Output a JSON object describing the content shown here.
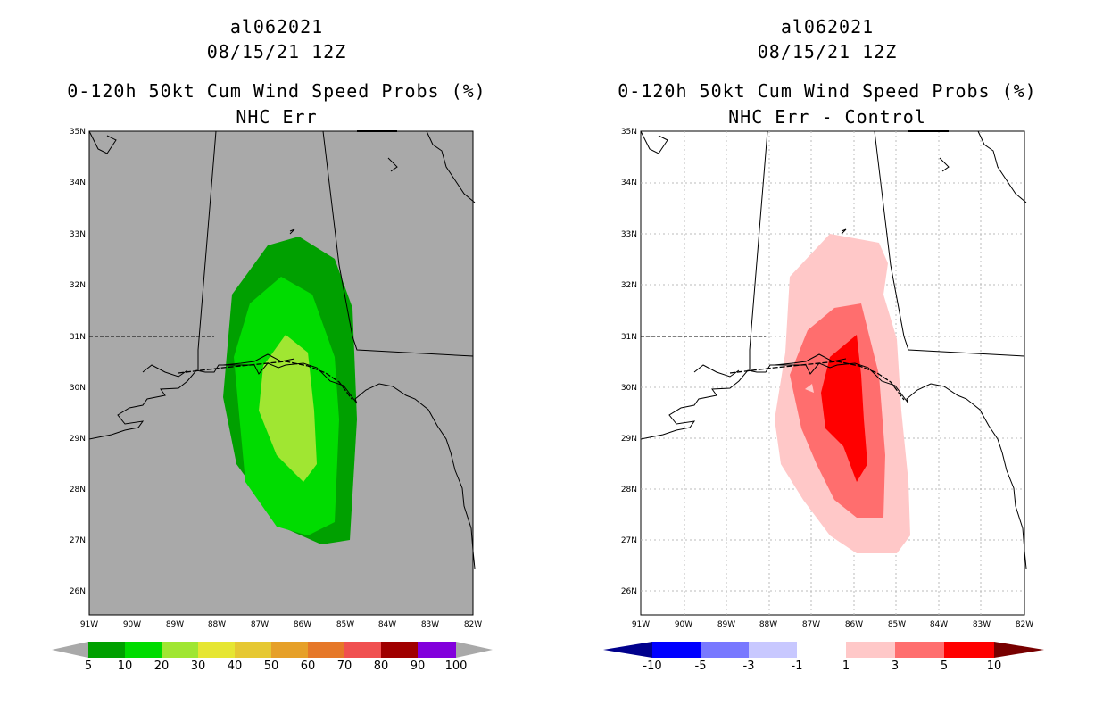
{
  "left_panel": {
    "storm_id": "al062021",
    "date": "08/15/21 12Z",
    "product": "0-120h 50kt Cum Wind Speed Probs (%)",
    "subtitle": "NHC Err",
    "colorbar_labels": [
      "5",
      "10",
      "20",
      "30",
      "40",
      "50",
      "60",
      "70",
      "80",
      "90",
      "100"
    ],
    "colorbar_colors": [
      "#00a000",
      "#00dc00",
      "#a0e632",
      "#e6e632",
      "#e6c832",
      "#e6a028",
      "#e67828",
      "#f05050",
      "#a00000",
      "#8200dc"
    ],
    "background_color": "#a9a9a9"
  },
  "right_panel": {
    "storm_id": "al062021",
    "date": "08/15/21 12Z",
    "product": "0-120h 50kt Cum Wind Speed Probs (%)",
    "subtitle": "NHC Err - Control",
    "colorbar_labels": [
      "-10",
      "-5",
      "-3",
      "-1",
      "1",
      "3",
      "5",
      "10"
    ],
    "colorbar_colors": [
      "#0000c8",
      "#0000ff",
      "#7878ff",
      "#c8c8ff",
      "#ffffff",
      "#ffc8c8",
      "#ff6e6e",
      "#ff0000"
    ],
    "colorbar_end_colors": [
      "#00008c",
      "#780000"
    ]
  },
  "axes": {
    "lat_labels": [
      "35N",
      "34N",
      "33N",
      "32N",
      "31N",
      "30N",
      "29N",
      "28N",
      "27N",
      "26N"
    ],
    "lon_labels": [
      "91W",
      "90W",
      "89W",
      "88W",
      "87W",
      "86W",
      "85W",
      "84W",
      "83W",
      "82W"
    ],
    "lon_range": [
      -91,
      -82
    ],
    "lat_range": [
      25.5,
      35
    ]
  }
}
